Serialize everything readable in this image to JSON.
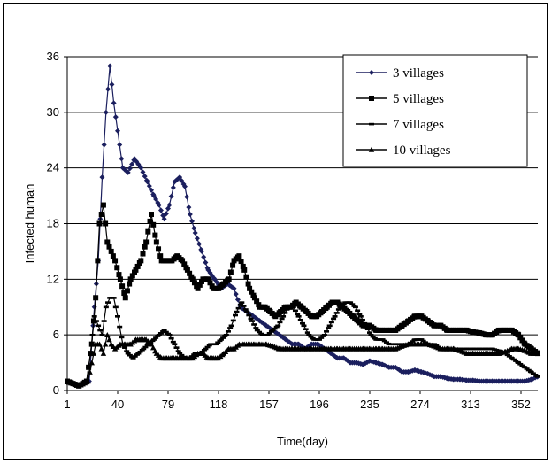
{
  "chart_data": {
    "type": "line",
    "xlabel": "Time(day)",
    "ylabel": "Infected human",
    "xlim": [
      1,
      365
    ],
    "ylim": [
      0,
      36
    ],
    "x_ticks": [
      1,
      40,
      79,
      118,
      157,
      196,
      235,
      274,
      313,
      352
    ],
    "y_ticks": [
      0,
      6,
      12,
      18,
      24,
      30,
      36
    ],
    "grid": "horizontal",
    "legend_position": "top-right",
    "series": [
      {
        "name": "3 villages",
        "marker": "diamond",
        "color": "#1b1f5e",
        "points": [
          [
            1,
            1
          ],
          [
            10,
            0.5
          ],
          [
            18,
            1
          ],
          [
            22,
            9
          ],
          [
            25,
            14
          ],
          [
            28,
            23
          ],
          [
            31,
            30
          ],
          [
            34,
            35
          ],
          [
            37,
            31
          ],
          [
            40,
            28
          ],
          [
            44,
            24
          ],
          [
            48,
            23.5
          ],
          [
            53,
            25
          ],
          [
            58,
            24
          ],
          [
            63,
            22.5
          ],
          [
            68,
            21
          ],
          [
            72,
            20
          ],
          [
            76,
            18.5
          ],
          [
            80,
            20
          ],
          [
            84,
            22.5
          ],
          [
            88,
            23
          ],
          [
            92,
            22
          ],
          [
            96,
            19
          ],
          [
            100,
            17
          ],
          [
            105,
            15
          ],
          [
            110,
            13
          ],
          [
            115,
            12
          ],
          [
            120,
            11
          ],
          [
            125,
            11.5
          ],
          [
            130,
            11
          ],
          [
            135,
            9
          ],
          [
            140,
            8.5
          ],
          [
            145,
            8
          ],
          [
            150,
            7.5
          ],
          [
            155,
            7
          ],
          [
            160,
            6.5
          ],
          [
            165,
            6
          ],
          [
            170,
            5.5
          ],
          [
            175,
            5
          ],
          [
            180,
            5
          ],
          [
            185,
            4.5
          ],
          [
            190,
            5
          ],
          [
            195,
            5
          ],
          [
            200,
            4.5
          ],
          [
            205,
            4
          ],
          [
            210,
            3.5
          ],
          [
            215,
            3.5
          ],
          [
            220,
            3
          ],
          [
            225,
            3
          ],
          [
            230,
            2.8
          ],
          [
            235,
            3.2
          ],
          [
            240,
            3
          ],
          [
            245,
            2.8
          ],
          [
            250,
            2.5
          ],
          [
            255,
            2.5
          ],
          [
            260,
            2
          ],
          [
            265,
            2
          ],
          [
            270,
            2.2
          ],
          [
            275,
            2
          ],
          [
            280,
            1.8
          ],
          [
            285,
            1.5
          ],
          [
            290,
            1.5
          ],
          [
            295,
            1.3
          ],
          [
            300,
            1.2
          ],
          [
            305,
            1.2
          ],
          [
            310,
            1.1
          ],
          [
            315,
            1.1
          ],
          [
            320,
            1
          ],
          [
            325,
            1
          ],
          [
            330,
            1
          ],
          [
            335,
            1
          ],
          [
            340,
            1
          ],
          [
            345,
            1
          ],
          [
            350,
            1
          ],
          [
            355,
            1
          ],
          [
            360,
            1.2
          ],
          [
            365,
            1.5
          ]
        ]
      },
      {
        "name": "5 villages",
        "marker": "square",
        "color": "#000000",
        "points": [
          [
            1,
            1
          ],
          [
            10,
            0.5
          ],
          [
            16,
            1
          ],
          [
            20,
            5
          ],
          [
            23,
            10
          ],
          [
            26,
            18
          ],
          [
            29,
            20
          ],
          [
            32,
            16
          ],
          [
            35,
            15
          ],
          [
            38,
            14
          ],
          [
            42,
            12
          ],
          [
            46,
            10
          ],
          [
            50,
            12
          ],
          [
            54,
            13
          ],
          [
            58,
            14
          ],
          [
            62,
            16
          ],
          [
            66,
            19
          ],
          [
            70,
            16
          ],
          [
            74,
            14
          ],
          [
            78,
            14
          ],
          [
            82,
            14
          ],
          [
            86,
            14.5
          ],
          [
            90,
            14
          ],
          [
            94,
            13
          ],
          [
            98,
            12
          ],
          [
            102,
            11
          ],
          [
            106,
            12
          ],
          [
            110,
            12
          ],
          [
            114,
            11
          ],
          [
            118,
            11
          ],
          [
            122,
            11.5
          ],
          [
            126,
            12
          ],
          [
            130,
            14
          ],
          [
            134,
            14.5
          ],
          [
            138,
            13
          ],
          [
            142,
            11
          ],
          [
            146,
            10
          ],
          [
            150,
            9
          ],
          [
            154,
            9
          ],
          [
            158,
            8.5
          ],
          [
            162,
            8
          ],
          [
            166,
            8.5
          ],
          [
            170,
            9
          ],
          [
            174,
            9
          ],
          [
            178,
            9.5
          ],
          [
            182,
            9
          ],
          [
            186,
            8.5
          ],
          [
            190,
            8
          ],
          [
            194,
            8
          ],
          [
            198,
            8.5
          ],
          [
            202,
            9
          ],
          [
            206,
            9.5
          ],
          [
            210,
            9.5
          ],
          [
            214,
            9
          ],
          [
            218,
            8.5
          ],
          [
            222,
            8
          ],
          [
            226,
            7.5
          ],
          [
            230,
            7
          ],
          [
            235,
            7
          ],
          [
            240,
            6.5
          ],
          [
            245,
            6.5
          ],
          [
            250,
            6.5
          ],
          [
            255,
            6.5
          ],
          [
            260,
            7
          ],
          [
            265,
            7.5
          ],
          [
            270,
            8
          ],
          [
            275,
            8
          ],
          [
            280,
            7.5
          ],
          [
            285,
            7
          ],
          [
            290,
            7
          ],
          [
            295,
            6.5
          ],
          [
            300,
            6.5
          ],
          [
            305,
            6.5
          ],
          [
            310,
            6.5
          ],
          [
            315,
            6.3
          ],
          [
            320,
            6.2
          ],
          [
            325,
            6
          ],
          [
            330,
            6
          ],
          [
            335,
            6.5
          ],
          [
            340,
            6.5
          ],
          [
            345,
            6.5
          ],
          [
            350,
            6
          ],
          [
            355,
            5
          ],
          [
            360,
            4.5
          ],
          [
            365,
            4
          ]
        ]
      },
      {
        "name": "7 villages",
        "marker": "dash",
        "color": "#000000",
        "points": [
          [
            1,
            0.8
          ],
          [
            10,
            0.5
          ],
          [
            16,
            1
          ],
          [
            19,
            4
          ],
          [
            22,
            8
          ],
          [
            25,
            7
          ],
          [
            28,
            6
          ],
          [
            31,
            9
          ],
          [
            34,
            10
          ],
          [
            37,
            10
          ],
          [
            40,
            8
          ],
          [
            44,
            5
          ],
          [
            48,
            4
          ],
          [
            52,
            3.5
          ],
          [
            56,
            4
          ],
          [
            60,
            4.5
          ],
          [
            64,
            5
          ],
          [
            68,
            5.5
          ],
          [
            72,
            6
          ],
          [
            76,
            6.5
          ],
          [
            80,
            6
          ],
          [
            84,
            5
          ],
          [
            88,
            4
          ],
          [
            92,
            3.5
          ],
          [
            96,
            3.5
          ],
          [
            100,
            4
          ],
          [
            104,
            4
          ],
          [
            108,
            4.5
          ],
          [
            112,
            5
          ],
          [
            116,
            5
          ],
          [
            120,
            5.5
          ],
          [
            124,
            6
          ],
          [
            128,
            7
          ],
          [
            132,
            8.5
          ],
          [
            136,
            9.5
          ],
          [
            140,
            8.5
          ],
          [
            144,
            7.5
          ],
          [
            148,
            6.5
          ],
          [
            152,
            6
          ],
          [
            156,
            6
          ],
          [
            160,
            6.5
          ],
          [
            164,
            7
          ],
          [
            168,
            8
          ],
          [
            172,
            9
          ],
          [
            176,
            9
          ],
          [
            180,
            8
          ],
          [
            184,
            7
          ],
          [
            188,
            6
          ],
          [
            192,
            5.5
          ],
          [
            196,
            5.5
          ],
          [
            200,
            6
          ],
          [
            204,
            7
          ],
          [
            208,
            8
          ],
          [
            212,
            9
          ],
          [
            216,
            9.5
          ],
          [
            220,
            9.5
          ],
          [
            224,
            9
          ],
          [
            228,
            8
          ],
          [
            232,
            7
          ],
          [
            236,
            6
          ],
          [
            240,
            5.5
          ],
          [
            245,
            5.5
          ],
          [
            250,
            5
          ],
          [
            255,
            5
          ],
          [
            260,
            5
          ],
          [
            265,
            5
          ],
          [
            270,
            5.5
          ],
          [
            275,
            5.5
          ],
          [
            280,
            5
          ],
          [
            285,
            5
          ],
          [
            290,
            4.5
          ],
          [
            295,
            4.5
          ],
          [
            300,
            4.5
          ],
          [
            305,
            4.5
          ],
          [
            310,
            4.5
          ],
          [
            315,
            4.5
          ],
          [
            320,
            4.5
          ],
          [
            325,
            4.5
          ],
          [
            330,
            4.5
          ],
          [
            335,
            4.3
          ],
          [
            340,
            4
          ],
          [
            345,
            3.5
          ],
          [
            350,
            3
          ],
          [
            355,
            2.5
          ],
          [
            360,
            2
          ],
          [
            365,
            1.5
          ]
        ]
      },
      {
        "name": "10 villages",
        "marker": "triangle",
        "color": "#000000",
        "points": [
          [
            1,
            1
          ],
          [
            10,
            0.5
          ],
          [
            17,
            1
          ],
          [
            20,
            3
          ],
          [
            23,
            5
          ],
          [
            26,
            5
          ],
          [
            29,
            4
          ],
          [
            32,
            6
          ],
          [
            35,
            5
          ],
          [
            38,
            4.5
          ],
          [
            42,
            5
          ],
          [
            46,
            5
          ],
          [
            50,
            5
          ],
          [
            54,
            5.5
          ],
          [
            58,
            5.5
          ],
          [
            62,
            5.5
          ],
          [
            66,
            5
          ],
          [
            70,
            4
          ],
          [
            74,
            3.5
          ],
          [
            78,
            3.5
          ],
          [
            82,
            3.5
          ],
          [
            86,
            3.5
          ],
          [
            90,
            3.5
          ],
          [
            94,
            3.5
          ],
          [
            98,
            3.5
          ],
          [
            102,
            4
          ],
          [
            106,
            4
          ],
          [
            110,
            3.5
          ],
          [
            114,
            3.5
          ],
          [
            118,
            3.5
          ],
          [
            122,
            4
          ],
          [
            126,
            4.5
          ],
          [
            130,
            4.5
          ],
          [
            134,
            5
          ],
          [
            138,
            5
          ],
          [
            142,
            5
          ],
          [
            146,
            5
          ],
          [
            150,
            5
          ],
          [
            155,
            5
          ],
          [
            160,
            4.8
          ],
          [
            165,
            4.5
          ],
          [
            170,
            4.5
          ],
          [
            175,
            4.5
          ],
          [
            180,
            4.5
          ],
          [
            185,
            4.5
          ],
          [
            190,
            4.5
          ],
          [
            195,
            4.5
          ],
          [
            200,
            4.5
          ],
          [
            205,
            4.5
          ],
          [
            210,
            4.5
          ],
          [
            215,
            4.5
          ],
          [
            220,
            4.5
          ],
          [
            225,
            4.5
          ],
          [
            230,
            4.5
          ],
          [
            235,
            4.5
          ],
          [
            240,
            4.5
          ],
          [
            245,
            4.5
          ],
          [
            250,
            4.5
          ],
          [
            255,
            4.5
          ],
          [
            260,
            4.8
          ],
          [
            265,
            5
          ],
          [
            270,
            5
          ],
          [
            275,
            5
          ],
          [
            280,
            5
          ],
          [
            285,
            4.8
          ],
          [
            290,
            4.5
          ],
          [
            295,
            4.5
          ],
          [
            300,
            4.5
          ],
          [
            305,
            4.3
          ],
          [
            310,
            4
          ],
          [
            315,
            4
          ],
          [
            320,
            4
          ],
          [
            325,
            4
          ],
          [
            330,
            4
          ],
          [
            335,
            4
          ],
          [
            340,
            4.2
          ],
          [
            345,
            4.5
          ],
          [
            350,
            4.5
          ],
          [
            355,
            4.3
          ],
          [
            360,
            4
          ],
          [
            365,
            4
          ]
        ]
      }
    ]
  }
}
